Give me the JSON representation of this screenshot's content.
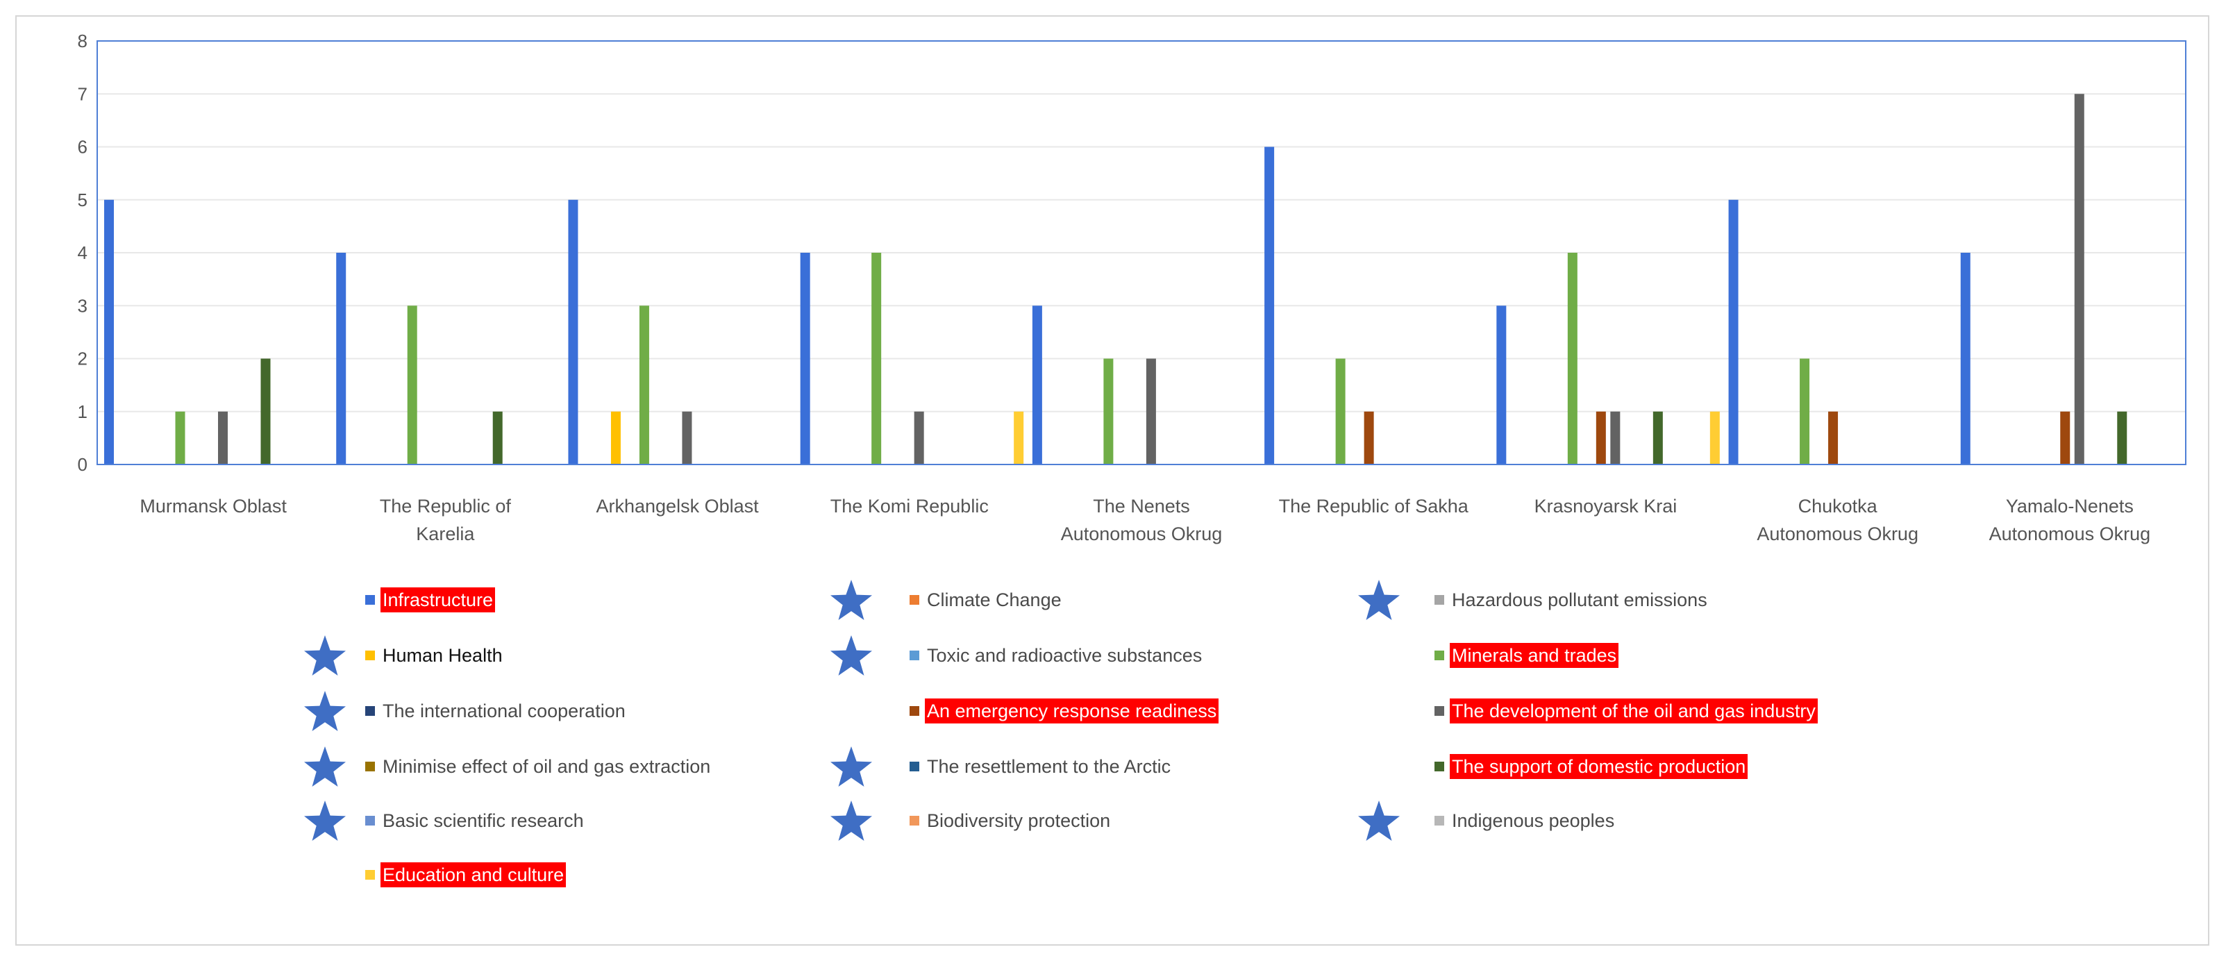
{
  "chart_data": {
    "type": "bar",
    "categories": [
      "Murmansk Oblast",
      "The Republic of Karelia",
      "Arkhangelsk Oblast",
      "The Komi Republic",
      "The Nenets Autonomous Okrug",
      "The Republic of Sakha",
      "Krasnoyarsk Krai",
      "Chukotka Autonomous Okrug",
      "Yamalo-Nenets Autonomous Okrug"
    ],
    "category_lines": [
      [
        "Murmansk Oblast"
      ],
      [
        "The Republic of",
        "Karelia"
      ],
      [
        "Arkhangelsk Oblast"
      ],
      [
        "The Komi Republic"
      ],
      [
        "The Nenets",
        "Autonomous Okrug"
      ],
      [
        "The Republic of Sakha"
      ],
      [
        "Krasnoyarsk Krai"
      ],
      [
        "Chukotka",
        "Autonomous Okrug"
      ],
      [
        "Yamalo-Nenets",
        "Autonomous Okrug"
      ]
    ],
    "ylim": [
      0,
      8
    ],
    "yticks": [
      "0",
      "1",
      "2",
      "3",
      "4",
      "5",
      "6",
      "7",
      "8"
    ],
    "grid": true,
    "legend_position": "bottom",
    "series": [
      {
        "name": "Infrastructure",
        "color": "#3a6fd8",
        "highlight": true,
        "star": false,
        "values": [
          5,
          4,
          5,
          4,
          3,
          6,
          3,
          5,
          4
        ]
      },
      {
        "name": "Climate Change",
        "color": "#ed7d31",
        "highlight": false,
        "star": true,
        "values": [
          0,
          0,
          0,
          0,
          0,
          0,
          0,
          0,
          0
        ]
      },
      {
        "name": "Hazardous pollutant emissions",
        "color": "#a5a5a5",
        "highlight": false,
        "star": true,
        "values": [
          0,
          0,
          0,
          0,
          0,
          0,
          0,
          0,
          0
        ]
      },
      {
        "name": "Human Health",
        "color": "#ffc000",
        "highlight": false,
        "star": true,
        "dark": true,
        "values": [
          0,
          0,
          1,
          0,
          0,
          0,
          0,
          0,
          0
        ]
      },
      {
        "name": "Toxic and radioactive substances",
        "color": "#5b9bd5",
        "highlight": false,
        "star": true,
        "values": [
          0,
          0,
          0,
          0,
          0,
          0,
          0,
          0,
          0
        ]
      },
      {
        "name": "Minerals and trades",
        "color": "#70ad47",
        "highlight": true,
        "star": false,
        "values": [
          1,
          3,
          3,
          4,
          2,
          2,
          4,
          2,
          0
        ]
      },
      {
        "name": "The international cooperation",
        "color": "#264478",
        "highlight": false,
        "star": true,
        "values": [
          0,
          0,
          0,
          0,
          0,
          0,
          0,
          0,
          0
        ]
      },
      {
        "name": "An emergency response readiness",
        "color": "#9e480e",
        "highlight": true,
        "star": false,
        "values": [
          0,
          0,
          0,
          0,
          0,
          1,
          1,
          1,
          1
        ]
      },
      {
        "name": "The development of the oil and gas industry",
        "color": "#636363",
        "highlight": true,
        "star": false,
        "values": [
          1,
          0,
          1,
          1,
          2,
          0,
          1,
          0,
          7
        ]
      },
      {
        "name": "Minimise effect of oil and gas extraction",
        "color": "#997300",
        "highlight": false,
        "star": true,
        "values": [
          0,
          0,
          0,
          0,
          0,
          0,
          0,
          0,
          0
        ]
      },
      {
        "name": "The resettlement to the Arctic",
        "color": "#255e91",
        "highlight": false,
        "star": true,
        "values": [
          0,
          0,
          0,
          0,
          0,
          0,
          0,
          0,
          0
        ]
      },
      {
        "name": "The support of domestic production",
        "color": "#43682b",
        "highlight": true,
        "star": false,
        "values": [
          2,
          1,
          0,
          0,
          0,
          0,
          1,
          0,
          1
        ]
      },
      {
        "name": "Basic scientific research",
        "color": "#698ed0",
        "highlight": false,
        "star": true,
        "values": [
          0,
          0,
          0,
          0,
          0,
          0,
          0,
          0,
          0
        ]
      },
      {
        "name": "Biodiversity protection",
        "color": "#f1975a",
        "highlight": false,
        "star": true,
        "values": [
          0,
          0,
          0,
          0,
          0,
          0,
          0,
          0,
          0
        ]
      },
      {
        "name": "Indigenous peoples",
        "color": "#b7b7b7",
        "highlight": false,
        "star": true,
        "values": [
          0,
          0,
          0,
          0,
          0,
          0,
          0,
          0,
          0
        ]
      },
      {
        "name": "Education and culture",
        "color": "#ffcd33",
        "highlight": true,
        "star": false,
        "values": [
          0,
          0,
          0,
          1,
          0,
          0,
          1,
          0,
          0
        ]
      }
    ],
    "colors": {
      "star": "#3f6ec4",
      "highlight_bg": "#ff0000",
      "plot_border": "#4f7fd6",
      "grid": "#e8e8e8"
    }
  }
}
